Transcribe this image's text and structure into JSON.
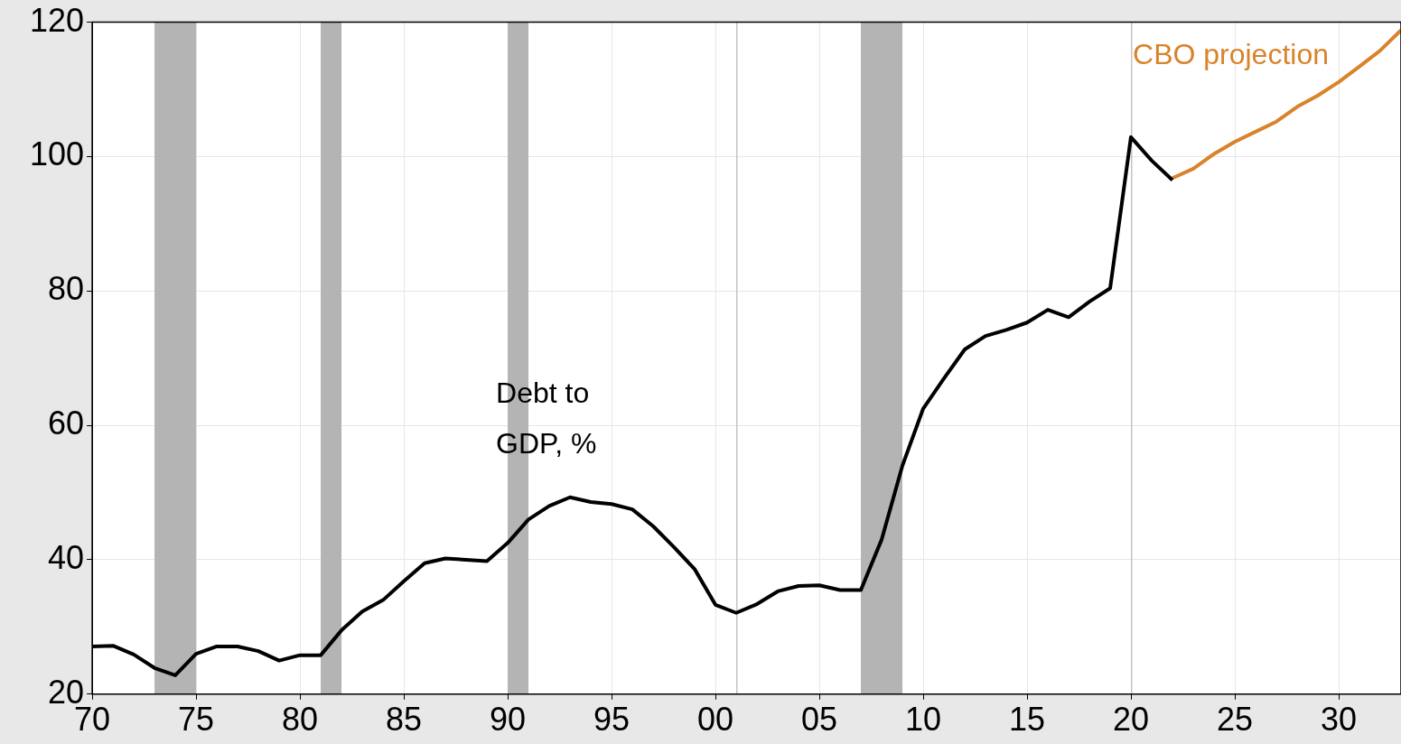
{
  "chart_data": {
    "type": "line",
    "x": [
      1970,
      1971,
      1972,
      1973,
      1974,
      1975,
      1976,
      1977,
      1978,
      1979,
      1980,
      1981,
      1982,
      1983,
      1984,
      1985,
      1986,
      1987,
      1988,
      1989,
      1990,
      1991,
      1992,
      1993,
      1994,
      1995,
      1996,
      1997,
      1998,
      1999,
      2000,
      2001,
      2002,
      2003,
      2004,
      2005,
      2006,
      2007,
      2008,
      2009,
      2010,
      2011,
      2012,
      2013,
      2014,
      2015,
      2016,
      2017,
      2018,
      2019,
      2020,
      2021,
      2022
    ],
    "series": [
      {
        "name": "Debt to GDP, %",
        "color": "#000000",
        "values": [
          27.1,
          27.2,
          25.9,
          23.9,
          22.8,
          26,
          27.1,
          27.1,
          26.4,
          25,
          25.8,
          25.8,
          29.5,
          32.3,
          34,
          36.8,
          39.5,
          40.2,
          40,
          39.8,
          42.5,
          46,
          48,
          49.3,
          48.6,
          48.3,
          47.5,
          45,
          41.9,
          38.6,
          33.3,
          32.1,
          33.4,
          35.3,
          36.1,
          36.2,
          35.5,
          35.5,
          43,
          54,
          62.5,
          67,
          71.3,
          73.3,
          74.2,
          75.3,
          77.2,
          76.1,
          78.4,
          80.4,
          102.9,
          99.4,
          96.5
        ]
      },
      {
        "name": "CBO projection",
        "color": "#d9832b",
        "x": [
          2022,
          2023,
          2024,
          2025,
          2026,
          2027,
          2028,
          2029,
          2030,
          2031,
          2032,
          2033
        ],
        "values": [
          96.8,
          98.2,
          100.4,
          102.2,
          103.7,
          105.2,
          107.4,
          109.1,
          111.1,
          113.4,
          115.8,
          118.8
        ]
      }
    ],
    "xlim": [
      1970,
      2033
    ],
    "xticks": [
      {
        "value": 1970,
        "label": "70"
      },
      {
        "value": 1975,
        "label": "75"
      },
      {
        "value": 1980,
        "label": "80"
      },
      {
        "value": 1985,
        "label": "85"
      },
      {
        "value": 1990,
        "label": "90"
      },
      {
        "value": 1995,
        "label": "95"
      },
      {
        "value": 2000,
        "label": "00"
      },
      {
        "value": 2005,
        "label": "05"
      },
      {
        "value": 2010,
        "label": "10"
      },
      {
        "value": 2015,
        "label": "15"
      },
      {
        "value": 2020,
        "label": "20"
      },
      {
        "value": 2025,
        "label": "25"
      },
      {
        "value": 2030,
        "label": "30"
      }
    ],
    "ylim": [
      20,
      120
    ],
    "yticks": [
      20,
      40,
      60,
      80,
      100,
      120
    ],
    "bands": [
      {
        "axis": "x",
        "from": 1973,
        "to": 1975,
        "color": "#b4b4b4"
      },
      {
        "axis": "x",
        "from": 1981,
        "to": 1982,
        "color": "#b4b4b4"
      },
      {
        "axis": "x",
        "from": 1990,
        "to": 1991,
        "color": "#b4b4b4"
      },
      {
        "axis": "x",
        "from": 2001,
        "to": 2001.05,
        "color": "#c4c4c4"
      },
      {
        "axis": "x",
        "from": 2007,
        "to": 2009,
        "color": "#b4b4b4"
      },
      {
        "axis": "x",
        "from": 2020,
        "to": 2020.05,
        "color": "#c4c4c4"
      }
    ],
    "grid": true,
    "legend": false,
    "marker": "none",
    "line_style": "solid"
  }
}
